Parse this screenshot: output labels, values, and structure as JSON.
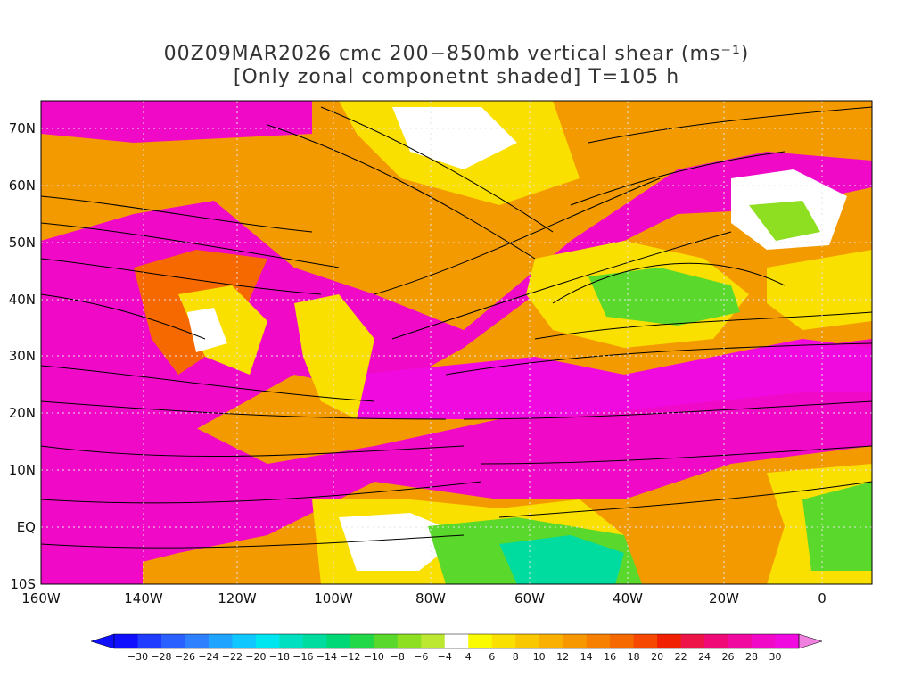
{
  "title": {
    "line1": "00Z09MAR2026 cmc 200−850mb vertical shear (ms⁻¹)",
    "line2": "[Only zonal componetnt shaded] T=105 h"
  },
  "map": {
    "lat_labels": [
      "70N",
      "60N",
      "50N",
      "40N",
      "30N",
      "20N",
      "10N",
      "EQ",
      "10S"
    ],
    "lon_labels": [
      "160W",
      "140W",
      "120W",
      "100W",
      "80W",
      "60W",
      "40W",
      "20W",
      "0"
    ],
    "lat_values": [
      70,
      60,
      50,
      40,
      30,
      20,
      10,
      0,
      -10
    ],
    "lon_values": [
      -160,
      -140,
      -120,
      -100,
      -80,
      -60,
      -40,
      -20,
      0
    ],
    "lat_range": [
      -10,
      75
    ],
    "lon_range": [
      -160,
      10
    ],
    "grid": "dotted"
  },
  "colorbar": {
    "labels": [
      "−30",
      "−28",
      "−26",
      "−24",
      "−22",
      "−20",
      "−18",
      "−16",
      "−14",
      "−12",
      "−10",
      "−8",
      "−6",
      "−4",
      "4",
      "6",
      "8",
      "10",
      "12",
      "14",
      "16",
      "18",
      "20",
      "22",
      "24",
      "26",
      "28",
      "30"
    ],
    "colors": [
      "#1010ff",
      "#1f3cff",
      "#2a60ff",
      "#2f80ff",
      "#1fa4ff",
      "#10c8ff",
      "#00e6f0",
      "#00e0c0",
      "#00dca0",
      "#00d878",
      "#22d848",
      "#5ad82c",
      "#8ede22",
      "#bde832",
      "#ffffff",
      "#fafa00",
      "#fae000",
      "#fac800",
      "#fab000",
      "#f89800",
      "#f88000",
      "#f66800",
      "#f64800",
      "#f02000",
      "#ee1448",
      "#f00a78",
      "#f00aa0",
      "#f00ac8",
      "#f00ae0"
    ],
    "left_arrow_color": "#1010ff",
    "right_arrow_color": "#f080e0"
  }
}
